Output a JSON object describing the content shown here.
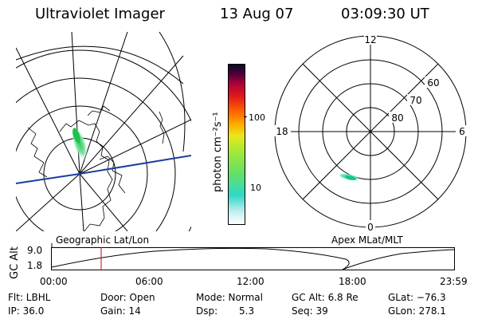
{
  "header": {
    "title": "Ultraviolet Imager",
    "date": "13 Aug 07",
    "time": "03:09:30 UT"
  },
  "left_plot": {
    "caption": "Geographic Lat/Lon"
  },
  "right_plot": {
    "caption": "Apex MLat/MLT",
    "mlt_labels": [
      "12",
      "18",
      "6",
      "0"
    ],
    "mlat_labels": [
      "60",
      "70",
      "80"
    ]
  },
  "colorbar": {
    "unit_label": "photon cm⁻²s⁻¹",
    "ticks": [
      "100",
      "10"
    ],
    "scale": "log"
  },
  "altitude_timeline": {
    "axis_label": "GC Alt",
    "y_ticks": [
      "9.0",
      "1.8"
    ],
    "x_ticks": [
      "00:00",
      "06:00",
      "12:00",
      "18:00",
      "23:59"
    ],
    "current_marker_time": "03:09:30",
    "marker_color": "#cc0000"
  },
  "info": {
    "filter": "Flt: LBHL",
    "door": "Door: Open",
    "mode": "Mode: Normal",
    "gc_alt": "GC Alt: 6.8 Re",
    "glat": "GLat: −76.3",
    "ip": "IP: 36.0",
    "gain": "Gain: 14",
    "dsp_label": "Dsp:",
    "dsp_value": "5.3",
    "seq": "Seq: 39",
    "glon": "GLon: 278.1"
  },
  "colors": {
    "orbit_track": "#1a3fa0",
    "aurora_green": "#33cc66",
    "aurora_cyan": "#3fd9c0"
  }
}
